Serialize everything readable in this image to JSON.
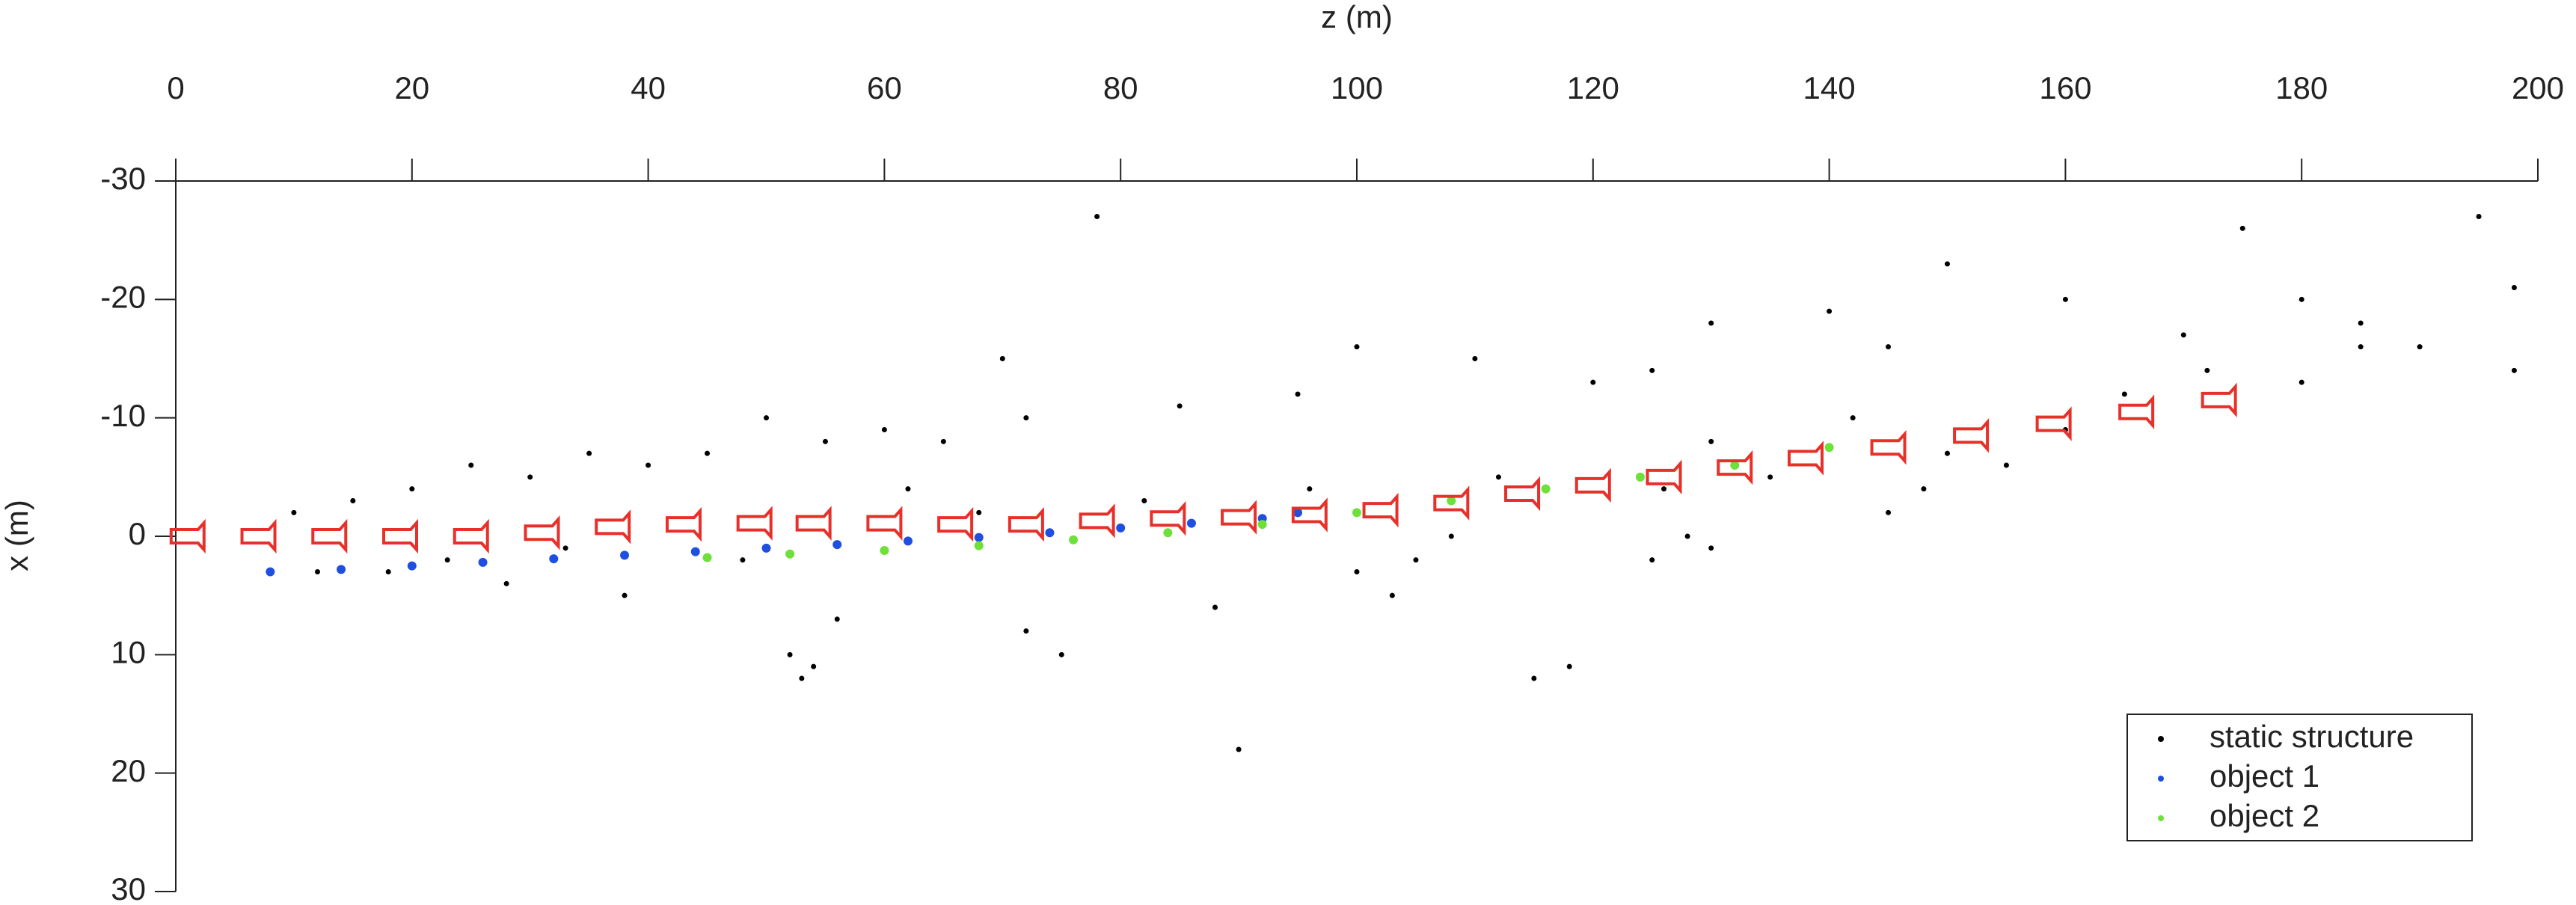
{
  "chart_data": {
    "type": "scatter",
    "xlabel": "z (m)",
    "ylabel": "x (m)",
    "xlim": [
      0,
      200
    ],
    "xticks": [
      0,
      20,
      40,
      60,
      80,
      100,
      120,
      140,
      160,
      180,
      200
    ],
    "ylim": [
      30,
      -30
    ],
    "yticks": [
      -30,
      -20,
      -10,
      0,
      10,
      20,
      30
    ],
    "legend": "lower right",
    "series": [
      {
        "name": "static structure",
        "color": "#000000",
        "x": [
          78,
          150,
          175,
          195,
          180,
          185,
          190,
          198,
          160,
          170,
          140,
          145,
          130,
          125,
          120,
          110,
          100,
          95,
          85,
          70,
          72,
          65,
          60,
          55,
          50,
          45,
          40,
          35,
          30,
          25,
          20,
          15,
          10,
          18,
          28,
          38,
          48,
          56,
          54,
          53,
          52,
          72,
          75,
          88,
          90,
          100,
          103,
          105,
          108,
          115,
          118,
          126,
          130,
          135,
          142,
          150,
          155,
          165,
          172,
          180,
          185,
          198,
          130,
          125,
          128,
          145,
          148,
          160,
          112,
          96,
          82,
          68,
          62,
          33,
          23,
          12
        ],
        "values": [
          -27,
          -23,
          -26,
          -27,
          -20,
          -18,
          -16,
          -21,
          -20,
          -17,
          -19,
          -16,
          -18,
          -14,
          -13,
          -15,
          -16,
          -12,
          -11,
          -15,
          -10,
          -8,
          -9,
          -8,
          -10,
          -7,
          -6,
          -7,
          -5,
          -6,
          -4,
          -3,
          -2,
          3,
          4,
          5,
          2,
          7,
          11,
          12,
          10,
          8,
          10,
          6,
          18,
          3,
          5,
          2,
          0,
          12,
          11,
          -4,
          -8,
          -5,
          -10,
          -7,
          -6,
          -12,
          -14,
          -13,
          -16,
          -14,
          1,
          2,
          0,
          -2,
          -4,
          -9,
          -5,
          -4,
          -3,
          -2,
          -4,
          1,
          2,
          3
        ]
      },
      {
        "name": "object  1",
        "color": "#1f4fe0",
        "x": [
          8,
          14,
          20,
          26,
          32,
          38,
          44,
          50,
          56,
          62,
          68,
          74,
          80,
          86,
          92,
          95
        ],
        "values": [
          3,
          2.8,
          2.5,
          2.2,
          1.9,
          1.6,
          1.3,
          1.0,
          0.7,
          0.4,
          0.1,
          -0.3,
          -0.7,
          -1.1,
          -1.5,
          -2
        ]
      },
      {
        "name": "object  2",
        "color": "#6ee03a",
        "x": [
          45,
          52,
          60,
          68,
          76,
          84,
          92,
          100,
          108,
          116,
          124,
          132,
          140
        ],
        "values": [
          1.8,
          1.5,
          1.2,
          0.8,
          0.3,
          -0.3,
          -1,
          -2,
          -3,
          -4,
          -5,
          -6,
          -7.5
        ]
      }
    ],
    "camera_poses": {
      "color": "#e8302a",
      "z": [
        1,
        7,
        13,
        19,
        25,
        31,
        37,
        43,
        49,
        54,
        60,
        66,
        72,
        78,
        84,
        90,
        96,
        102,
        108,
        114,
        120,
        126,
        132,
        138,
        145,
        152,
        159,
        166,
        173
      ],
      "x": [
        0,
        0,
        0,
        0,
        0,
        -0.3,
        -0.8,
        -1,
        -1.1,
        -1.1,
        -1.1,
        -1,
        -1,
        -1.3,
        -1.5,
        -1.6,
        -1.8,
        -2.2,
        -2.8,
        -3.6,
        -4.3,
        -5,
        -5.8,
        -6.6,
        -7.5,
        -8.5,
        -9.5,
        -10.5,
        -11.5
      ]
    }
  }
}
